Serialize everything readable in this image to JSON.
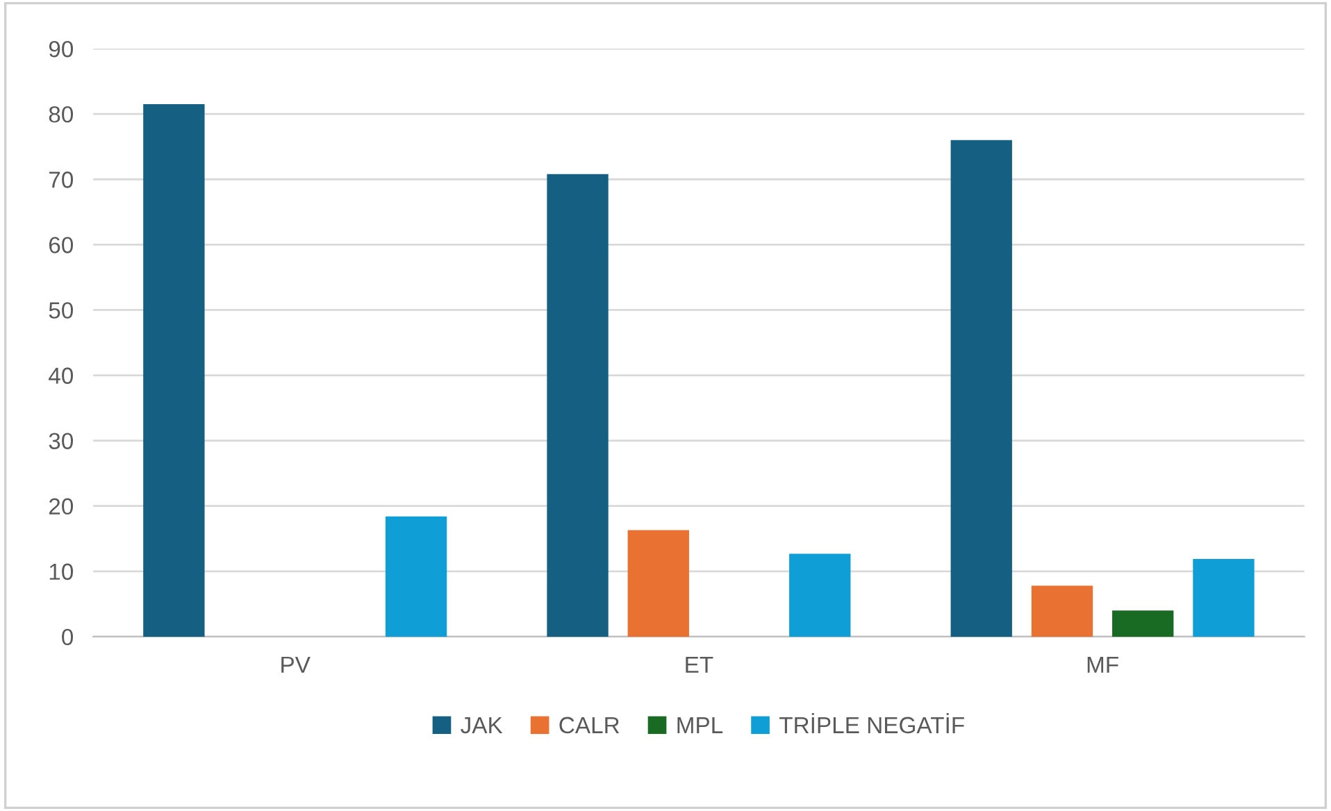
{
  "chart_data": {
    "type": "bar",
    "categories": [
      "PV",
      "ET",
      "MF"
    ],
    "series": [
      {
        "name": "JAK",
        "color": "#156082",
        "values": [
          81.5,
          70.8,
          76.0
        ]
      },
      {
        "name": "CALR",
        "color": "#e97132",
        "values": [
          null,
          16.3,
          7.8
        ]
      },
      {
        "name": "MPL",
        "color": "#196b24",
        "values": [
          null,
          null,
          4.0
        ]
      },
      {
        "name": "TRİPLE NEGATİF",
        "color": "#0f9ed5",
        "values": [
          18.4,
          12.7,
          11.9
        ]
      }
    ],
    "ylim": [
      0,
      90
    ],
    "yticks": [
      0,
      10,
      20,
      30,
      40,
      50,
      60,
      70,
      80,
      90
    ],
    "grid": "y",
    "legend": "bottom"
  }
}
